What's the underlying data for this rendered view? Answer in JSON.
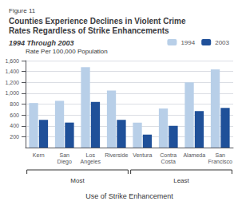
{
  "chart_data": {
    "type": "bar",
    "figure_label": "Figure 11",
    "title": "Counties Experience Declines in Violent Crime\nRates Regardless of Strike Enhancements",
    "subtitle": "1994 Through 2003",
    "ylabel": "Rate Per 100,000 Population",
    "xlabel": "Use of Strike Enhancement",
    "categories": [
      "Kern",
      "San\nDiego",
      "Los\nAngeles",
      "Riverside",
      "Ventura",
      "Contra\nCosta",
      "Alameda",
      "San\nFrancisco"
    ],
    "series": [
      {
        "name": "1994",
        "color": "#b8cfe8",
        "values": [
          820,
          860,
          1480,
          1050,
          460,
          720,
          1200,
          1440
        ]
      },
      {
        "name": "2003",
        "color": "#1f5099",
        "values": [
          510,
          460,
          840,
          510,
          240,
          400,
          670,
          730
        ]
      }
    ],
    "ylim": [
      0,
      1600
    ],
    "yticks": [
      200,
      400,
      600,
      800,
      {
        "value": 1000,
        "label": "1,000"
      },
      {
        "value": 1200,
        "label": "1,200"
      },
      {
        "value": 1400,
        "label": "1,400"
      },
      {
        "value": 1600,
        "label": "1,600"
      }
    ],
    "grid": true,
    "legend": "upper right",
    "annotations": [
      {
        "text": "Most",
        "from": "Kern",
        "to": "Riverside"
      },
      {
        "text": "Least",
        "from": "Ventura",
        "to": "San\nFrancisco"
      }
    ]
  }
}
